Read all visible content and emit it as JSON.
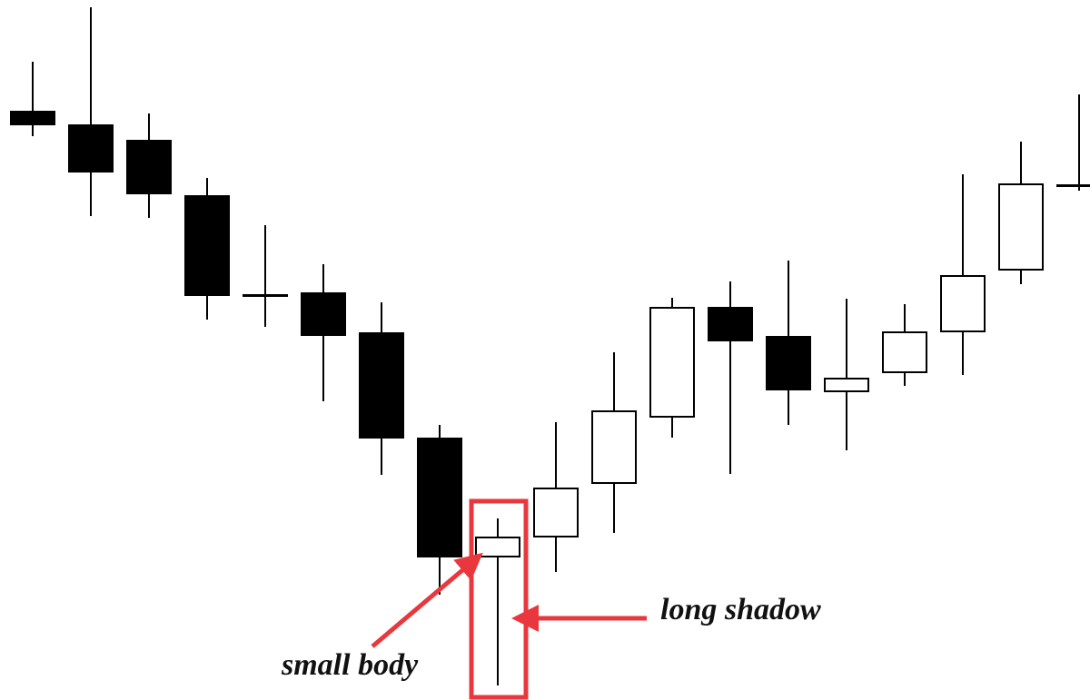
{
  "chart_data": {
    "type": "candlestick",
    "open": [
      648,
      633,
      616,
      555,
      446,
      448,
      404,
      288,
      158,
      180,
      239,
      312,
      432,
      400,
      340,
      361,
      406,
      474,
      567
    ],
    "high": [
      703,
      763,
      646,
      575,
      523,
      480,
      438,
      303,
      200,
      306,
      383,
      443,
      461,
      484,
      442,
      436,
      579,
      615,
      667
    ],
    "low": [
      621,
      533,
      531,
      419,
      411,
      329,
      248,
      116,
      16,
      141,
      184,
      289,
      249,
      303,
      275,
      346,
      358,
      458,
      561
    ],
    "close": [
      634,
      582,
      558,
      446,
      446,
      402,
      289,
      158,
      179,
      233,
      318,
      432,
      396,
      342,
      354,
      405,
      467,
      568,
      567
    ],
    "up_color": "#ffffff",
    "down_color": "#000000",
    "ylim": [
      0,
      771
    ],
    "annotations": [
      "small body",
      "long shadow"
    ]
  }
}
